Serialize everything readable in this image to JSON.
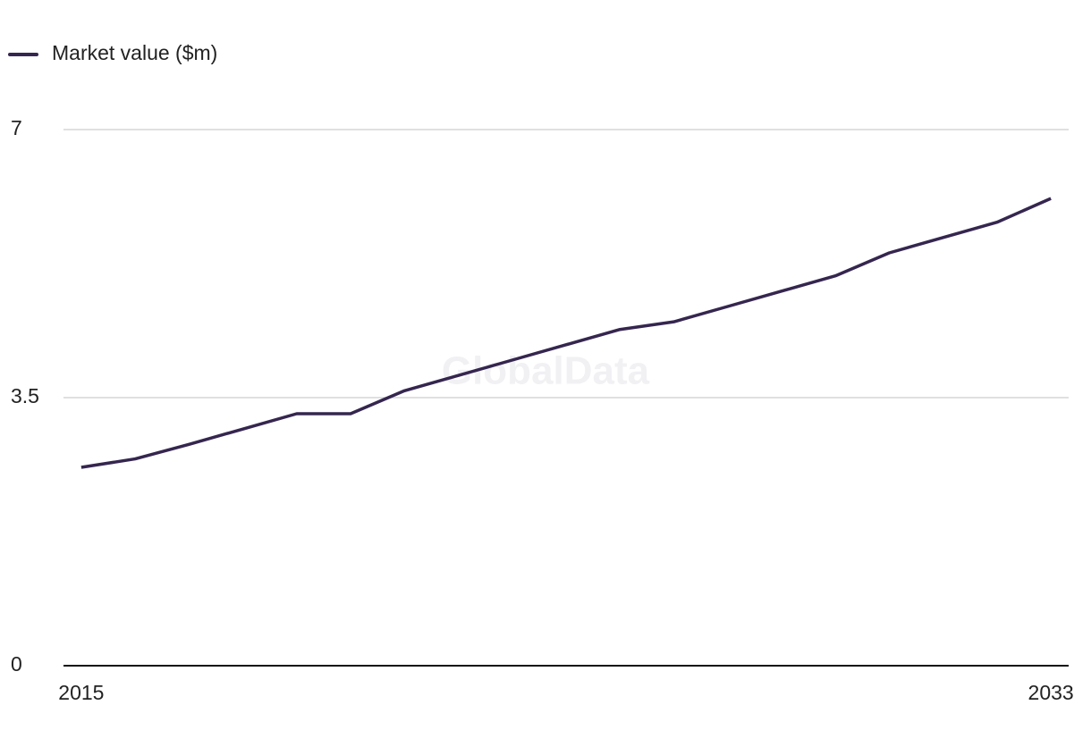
{
  "chart_data": {
    "type": "line",
    "watermark": "GlobalData",
    "x": [
      2015,
      2016,
      2017,
      2018,
      2019,
      2020,
      2021,
      2022,
      2023,
      2024,
      2025,
      2026,
      2027,
      2028,
      2029,
      2030,
      2031,
      2032,
      2033
    ],
    "series": [
      {
        "name": "Market value ($m)",
        "color": "#35264f",
        "values": [
          2.59,
          2.7,
          2.89,
          3.09,
          3.29,
          3.29,
          3.59,
          3.79,
          3.99,
          4.19,
          4.39,
          4.49,
          4.69,
          4.89,
          5.09,
          5.39,
          5.59,
          5.79,
          6.1
        ]
      }
    ],
    "xlim": [
      2014.67,
      2033.33
    ],
    "xticks": [
      2015,
      2033
    ],
    "ylim": [
      0,
      7
    ],
    "yticks": [
      0,
      3.5,
      7
    ],
    "grid": true,
    "legend": "top-left"
  }
}
